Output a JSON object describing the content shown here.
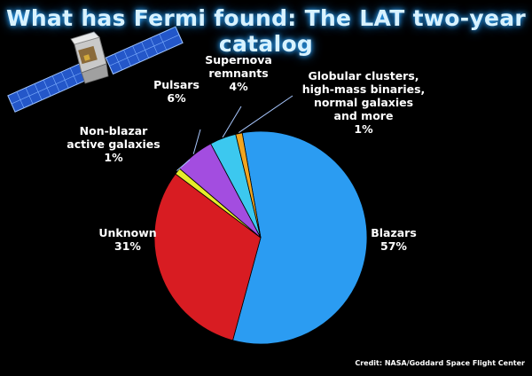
{
  "title": "What has Fermi found: The LAT two-year catalog",
  "credit": "Credit: NASA/Goddard Space Flight Center",
  "chart_data": {
    "type": "pie",
    "title": "What has Fermi found: The LAT two-year catalog",
    "slices": [
      {
        "label": [
          "Blazars"
        ],
        "value": 57,
        "value_label": "57%",
        "color": "#2b9cf2"
      },
      {
        "label": [
          "Unknown"
        ],
        "value": 31,
        "value_label": "31%",
        "color": "#d81c22"
      },
      {
        "label": [
          "Non-blazar",
          "active galaxies"
        ],
        "value": 1,
        "value_label": "1%",
        "color": "#e6ec2a"
      },
      {
        "label": [
          "Pulsars"
        ],
        "value": 6,
        "value_label": "6%",
        "color": "#a34de0"
      },
      {
        "label": [
          "Supernova",
          "remnants"
        ],
        "value": 4,
        "value_label": "4%",
        "color": "#3cc8ef"
      },
      {
        "label": [
          "Globular clusters,",
          "high-mass binaries,",
          "normal galaxies",
          "and more"
        ],
        "value": 1,
        "value_label": "1%",
        "color": "#f2a51f"
      }
    ]
  },
  "icons": {
    "satellite": "fermi-satellite-icon"
  }
}
